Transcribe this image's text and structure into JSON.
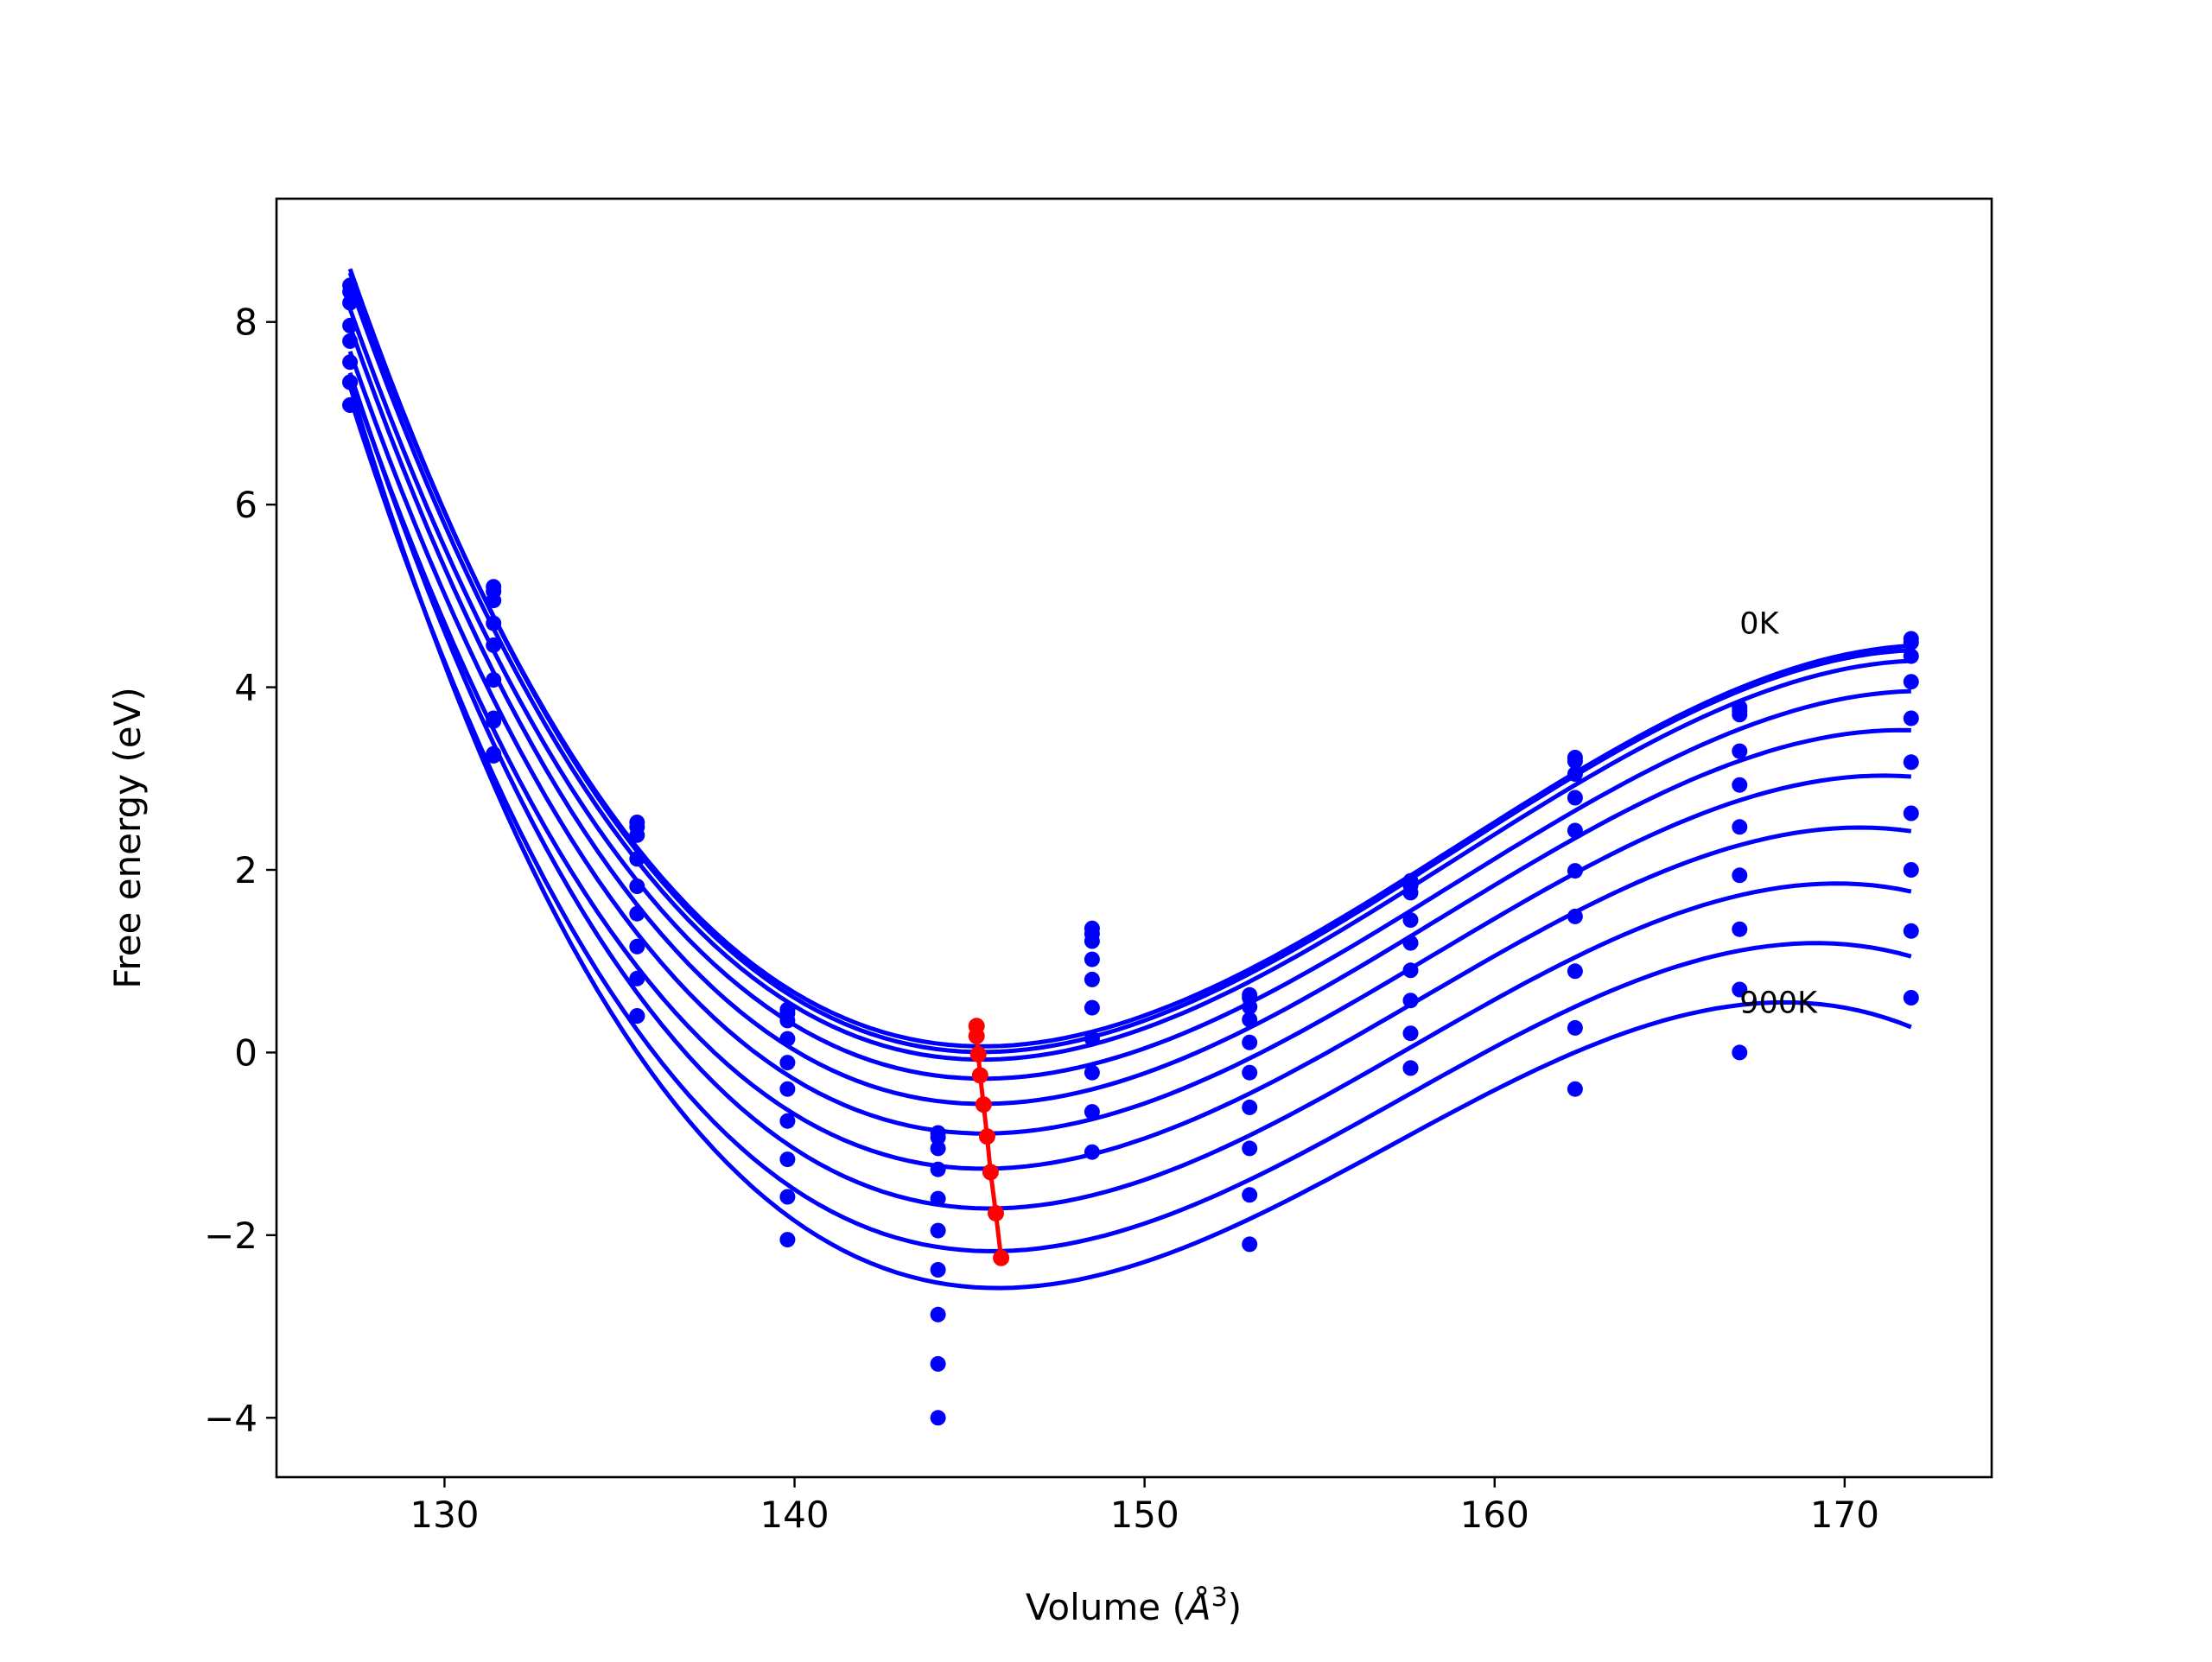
{
  "chart_data": {
    "type": "scatter",
    "title": "",
    "xlabel": "Volume (",
    "xlabel_symbol": "Å",
    "xlabel_power": "3",
    "xlabel_close": ")",
    "ylabel": "Free energy (eV)",
    "xlim": [
      125.2,
      174.2
    ],
    "ylim": [
      -4.65,
      9.35
    ],
    "xticks": [
      130,
      140,
      150,
      160,
      170
    ],
    "yticks": [
      -4,
      -2,
      0,
      2,
      4,
      6,
      8
    ],
    "xtick_labels": [
      "130",
      "140",
      "150",
      "160",
      "170"
    ],
    "ytick_labels": [
      "−4",
      "−2",
      "0",
      "2",
      "4",
      "6",
      "8"
    ],
    "grid": false,
    "annotations": [
      {
        "text": "0K",
        "x": 167.0,
        "y": 4.7
      },
      {
        "text": "900K",
        "x": 167.0,
        "y": 0.55
      }
    ],
    "curve_color": "#0000ff",
    "point_color": "#0000ff",
    "minimum_color": "#ff0000",
    "volumes": [
      127.3,
      131.4,
      135.5,
      139.8,
      144.1,
      148.5,
      153.0,
      157.6,
      162.3,
      167.0,
      171.9
    ],
    "series": [
      {
        "values": [
          8.33,
          5.1,
          2.52,
          0.47,
          -0.88,
          1.36,
          0.63,
          1.88,
          3.23,
          3.78,
          4.53
        ]
      },
      {
        "values": [
          8.4,
          5.05,
          2.47,
          0.43,
          -0.93,
          1.3,
          0.6,
          1.83,
          3.19,
          3.74,
          4.49
        ]
      },
      {
        "values": [
          8.21,
          4.95,
          2.38,
          0.35,
          -1.05,
          1.22,
          0.5,
          1.75,
          3.05,
          3.7,
          4.34
        ]
      },
      {
        "values": [
          7.96,
          4.7,
          2.12,
          0.15,
          -1.28,
          1.02,
          0.36,
          1.45,
          2.79,
          3.3,
          4.06
        ]
      },
      {
        "values": [
          7.79,
          4.46,
          1.82,
          -0.11,
          -1.6,
          0.8,
          0.11,
          1.2,
          2.43,
          2.93,
          3.66
        ]
      },
      {
        "values": [
          7.56,
          4.08,
          1.52,
          -0.4,
          -1.95,
          0.49,
          -0.22,
          0.9,
          1.99,
          2.47,
          3.18
        ]
      },
      {
        "values": [
          7.34,
          3.66,
          1.16,
          -0.75,
          -2.38,
          0.15,
          -0.6,
          0.57,
          1.49,
          1.94,
          2.62
        ]
      },
      {
        "values": [
          7.34,
          3.63,
          0.81,
          -1.17,
          -2.87,
          -0.22,
          -1.05,
          0.21,
          0.89,
          1.35,
          2.0
        ]
      },
      {
        "values": [
          7.09,
          3.25,
          0.4,
          -1.58,
          -3.41,
          -0.65,
          -1.56,
          -0.17,
          0.27,
          0.69,
          1.33
        ]
      },
      {
        "values": [
          7.09,
          3.27,
          0.4,
          -2.05,
          -4.0,
          -1.09,
          -2.1,
          -0.17,
          -0.4,
          0.0,
          0.6
        ]
      }
    ],
    "minimum_path": {
      "x": [
        145.2,
        145.2,
        145.25,
        145.3,
        145.4,
        145.5,
        145.6,
        145.75,
        145.9
      ],
      "y": [
        0.29,
        0.18,
        -0.02,
        -0.25,
        -0.57,
        -0.92,
        -1.31,
        -1.76,
        -2.25
      ]
    }
  }
}
